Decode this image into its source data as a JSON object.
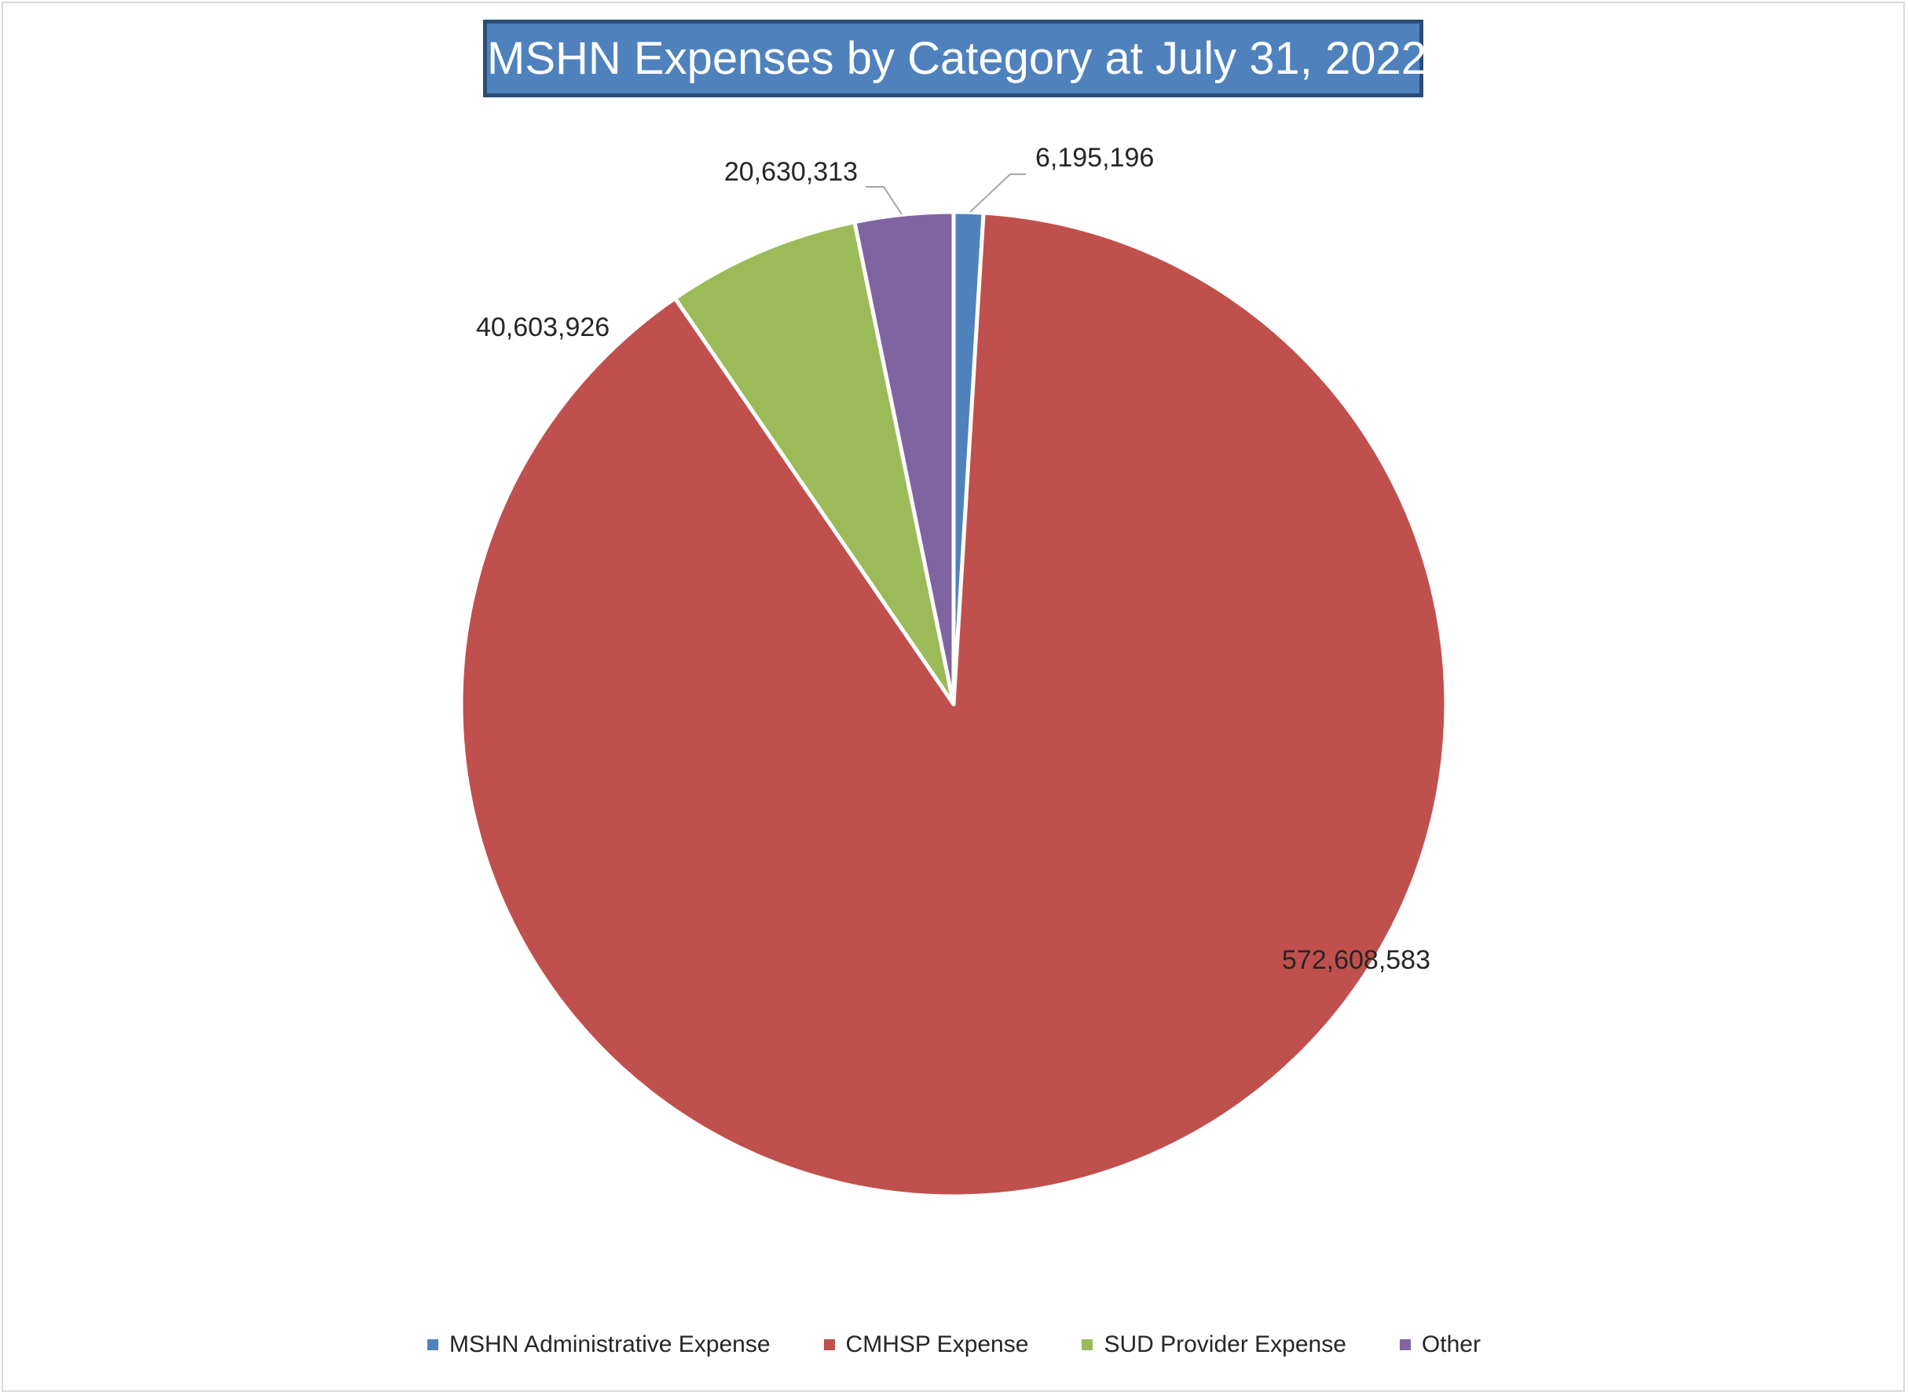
{
  "chart_data": {
    "type": "pie",
    "title": "MSHN Expenses by Category at July 31, 2022",
    "categories": [
      "MSHN Administrative Expense",
      "CMHSP Expense",
      "SUD Provider Expense",
      "Other"
    ],
    "values": [
      6195196,
      572608583,
      40603926,
      20630313
    ],
    "data_labels": [
      "6,195,196",
      "572,608,583",
      "40,603,926",
      "20,630,313"
    ],
    "colors": [
      "#4f81bd",
      "#c0504d",
      "#9bbb59",
      "#8064a2"
    ],
    "start_angle_deg": 0,
    "direction": "clockwise",
    "legend_position": "bottom"
  }
}
